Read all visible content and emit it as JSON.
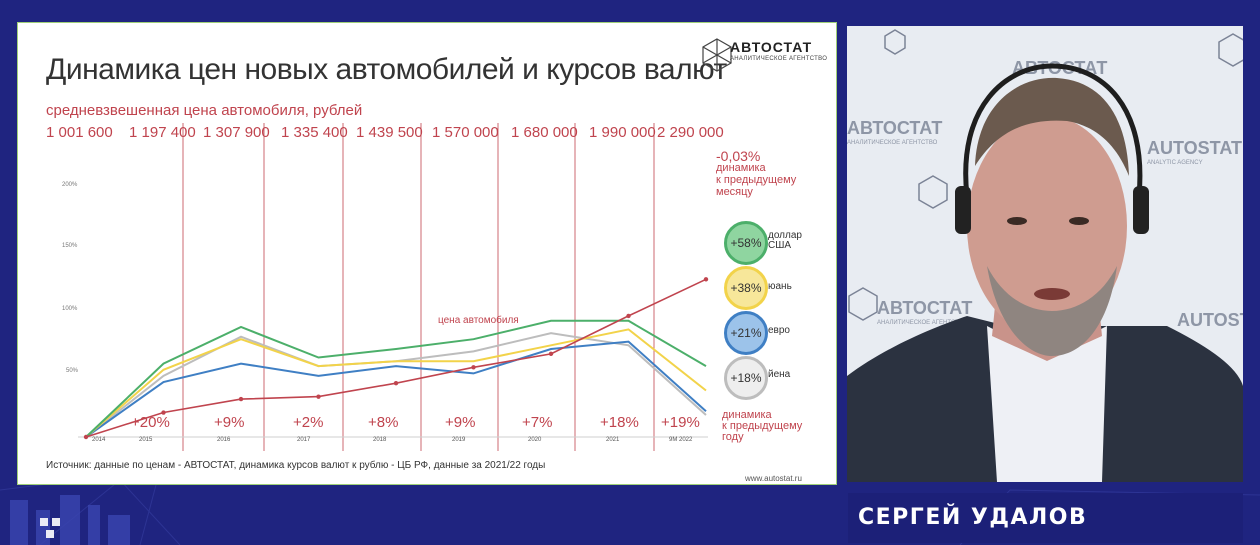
{
  "slide": {
    "title": "Динамика цен новых автомобилей и курсов валют",
    "subtitle": "средневзвешенная цена автомобиля, рублей",
    "logo_name": "АВТОСТАТ",
    "logo_tagline": "АНАЛИТИЧЕСКОЕ АГЕНТСТВО",
    "prices": [
      "1 001 600",
      "1 197 400",
      "1 307 900",
      "1 335 400",
      "1 439 500",
      "1 570 000",
      "1 680 000",
      "1 990 000",
      "2 290 000"
    ],
    "growth": [
      "+20%",
      "+9%",
      "+2%",
      "+8%",
      "+9%",
      "+7%",
      "+18%",
      "+19%"
    ],
    "car_price_label": "цена автомобиля",
    "monthly_value": "-0,03%",
    "monthly_label": [
      "динамика",
      "к предыдущему",
      "месяцу"
    ],
    "yearly_label": [
      "динамика",
      "к предыдущему",
      "году"
    ],
    "currencies": [
      {
        "change": "+58%",
        "label_lines": [
          "доллар",
          "США"
        ],
        "color": "#4caf6a"
      },
      {
        "change": "+38%",
        "label_lines": [
          "юань"
        ],
        "color": "#f2d34a"
      },
      {
        "change": "+21%",
        "label_lines": [
          "евро"
        ],
        "color": "#3f7fc4"
      },
      {
        "change": "+18%",
        "label_lines": [
          "йена"
        ],
        "color": "#bdbdbd"
      }
    ],
    "footer": "Источник: данные по ценам - АВТОСТАТ, динамика курсов валют к рублю - ЦБ РФ, данные за 2021/22 годы",
    "website": "www.autostat.ru"
  },
  "chart_data": {
    "type": "line",
    "x": [
      "2014",
      "2015",
      "2016",
      "2017",
      "2018",
      "2019",
      "2020",
      "2021",
      "9М 2022"
    ],
    "yticks": [
      "200%",
      "150%",
      "100%",
      "50%"
    ],
    "ylim": [
      0,
      220
    ],
    "series": [
      {
        "name": "цена автомобиля",
        "color": "#c0444e",
        "values": [
          0,
          20,
          31,
          33,
          44,
          57,
          68,
          99,
          129
        ]
      },
      {
        "name": "доллар США",
        "color": "#4caf6a",
        "values": [
          0,
          60,
          90,
          65,
          72,
          80,
          95,
          95,
          58
        ]
      },
      {
        "name": "юань",
        "color": "#f2d34a",
        "values": [
          0,
          55,
          80,
          58,
          62,
          62,
          75,
          88,
          38
        ]
      },
      {
        "name": "евро",
        "color": "#3f7fc4",
        "values": [
          0,
          45,
          60,
          50,
          58,
          52,
          72,
          78,
          21
        ]
      },
      {
        "name": "йена",
        "color": "#bdbdbd",
        "values": [
          0,
          50,
          82,
          58,
          62,
          70,
          85,
          75,
          18
        ]
      }
    ]
  },
  "speaker": {
    "name": "СЕРГЕЙ УДАЛОВ",
    "backdrop_text": [
      "АВТОСТАТ",
      "АНАЛИТИЧЕСКОЕ АГЕНТСТВО",
      "AUTOSTAT",
      "ANALYTIC AGENCY"
    ]
  }
}
